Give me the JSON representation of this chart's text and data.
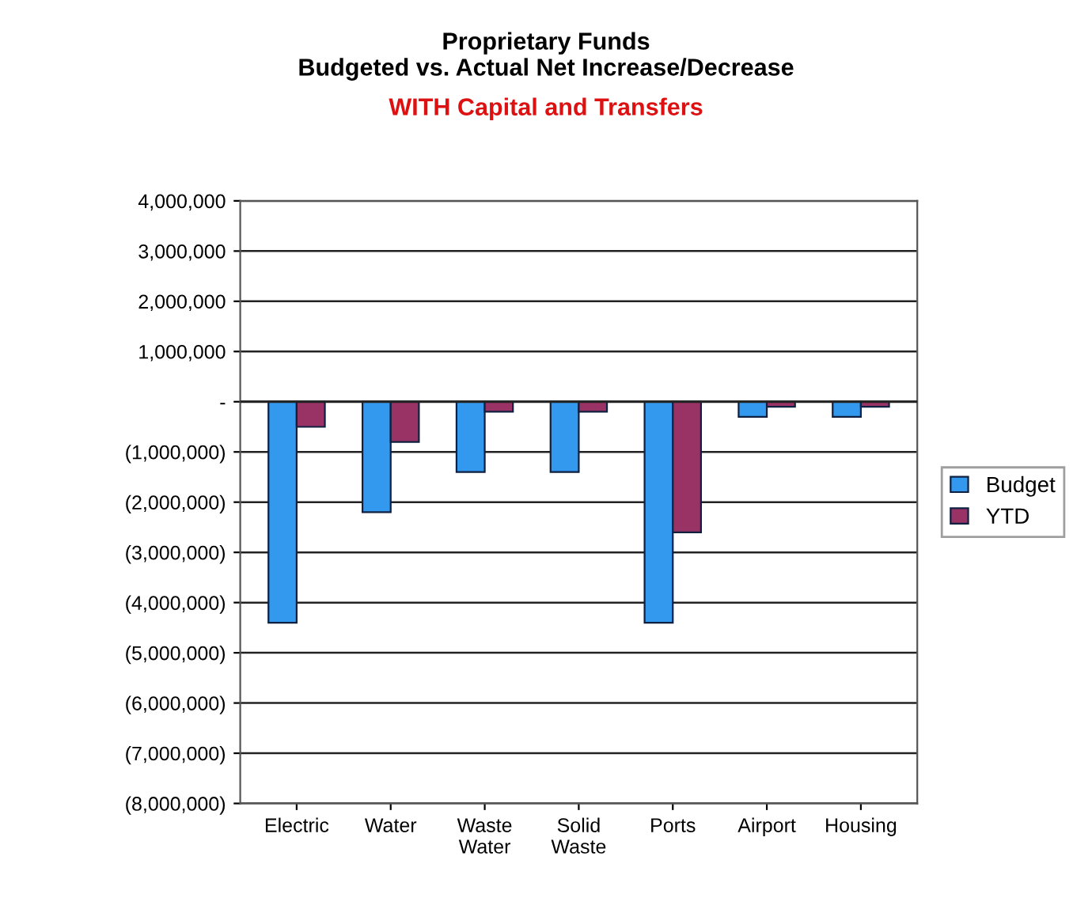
{
  "chart_data": {
    "type": "bar",
    "title": "Proprietary Funds\nBudgeted vs. Actual Net Increase/Decrease",
    "subtitle": "WITH Capital and Transfers",
    "categories": [
      "Electric",
      "Water",
      "Waste\nWater",
      "Solid\nWaste",
      "Ports",
      "Airport",
      "Housing"
    ],
    "series": [
      {
        "name": "Budget",
        "color": "#3399ee",
        "values": [
          -4400000,
          -2200000,
          -1400000,
          -1400000,
          -4400000,
          -300000,
          -300000
        ]
      },
      {
        "name": "YTD",
        "color": "#993366",
        "values": [
          -500000,
          -800000,
          -200000,
          -200000,
          -2600000,
          -100000,
          -100000
        ]
      }
    ],
    "ylim": [
      -8000000,
      4000000
    ],
    "yticks": [
      {
        "value": 4000000,
        "label": "4,000,000"
      },
      {
        "value": 3000000,
        "label": "3,000,000"
      },
      {
        "value": 2000000,
        "label": "2,000,000"
      },
      {
        "value": 1000000,
        "label": "1,000,000"
      },
      {
        "value": 0,
        "label": "-"
      },
      {
        "value": -1000000,
        "label": "(1,000,000)"
      },
      {
        "value": -2000000,
        "label": "(2,000,000)"
      },
      {
        "value": -3000000,
        "label": "(3,000,000)"
      },
      {
        "value": -4000000,
        "label": "(4,000,000)"
      },
      {
        "value": -5000000,
        "label": "(5,000,000)"
      },
      {
        "value": -6000000,
        "label": "(6,000,000)"
      },
      {
        "value": -7000000,
        "label": "(7,000,000)"
      },
      {
        "value": -8000000,
        "label": "(8,000,000)"
      }
    ],
    "grid": "y",
    "legend": "right"
  }
}
